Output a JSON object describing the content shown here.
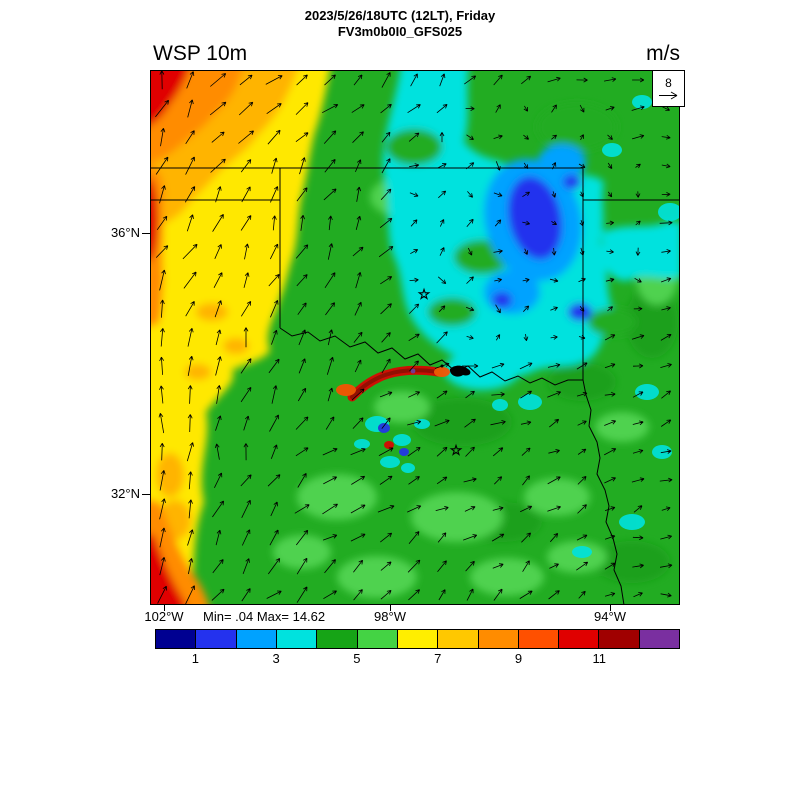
{
  "header": {
    "line1": "2023/5/26/18UTC (12LT), Friday",
    "line2": "FV3m0b0I0_GFS025"
  },
  "plot": {
    "field_label": "WSP 10m",
    "units": "m/s",
    "ref_vector_value": "8",
    "lat_labels": [
      "36°N",
      "32°N"
    ],
    "lon_labels": [
      "102°W",
      "98°W",
      "94°W"
    ],
    "stats": "Min= .04 Max= 14.62"
  },
  "colorbar": {
    "ticks": [
      "1",
      "3",
      "5",
      "7",
      "9",
      "11"
    ],
    "colors": [
      "#000091",
      "#2432ee",
      "#00a2ff",
      "#00e2de",
      "#16a416",
      "#44d344",
      "#ffee00",
      "#ffc800",
      "#ff8c00",
      "#ff5000",
      "#e00000",
      "#a00000",
      "#7a2fa0"
    ]
  },
  "chart_data": {
    "type": "heatmap",
    "title": "WSP 10m",
    "subtitle_lines": [
      "2023/5/26/18UTC (12LT), Friday",
      "FV3m0b0I0_GFS025"
    ],
    "units": "m/s",
    "min": 0.04,
    "max": 14.62,
    "reference_vector_ms": 8,
    "colorbar_levels": [
      0,
      1,
      2,
      3,
      4,
      5,
      6,
      7,
      8,
      9,
      10,
      11,
      12,
      13
    ],
    "colorbar_tick_labels": [
      1,
      3,
      5,
      7,
      9,
      11
    ],
    "lat_gridlines": [
      "36°N",
      "32°N"
    ],
    "lon_gridlines": [
      "102°W",
      "98°W",
      "94°W"
    ],
    "field_summary": [
      {
        "area": "northwest corner and far-west edge",
        "wind_ms": "8-13"
      },
      {
        "area": "western quarter (panhandle region)",
        "wind_ms": "6-8"
      },
      {
        "area": "central band (north Texas / southern Oklahoma)",
        "wind_ms": "4-6"
      },
      {
        "area": "east-central minimum core (eastern Oklahoma)",
        "wind_ms": "1-3"
      },
      {
        "area": "south and east sectors",
        "wind_ms": "3-6"
      },
      {
        "area": "local maximum streak west-center with small calm pockets below",
        "wind_ms": "11-14.62"
      }
    ],
    "vectors": "10 m wind arrows; strong southerly flow in the west, weak and variable near the eastern minimum"
  }
}
